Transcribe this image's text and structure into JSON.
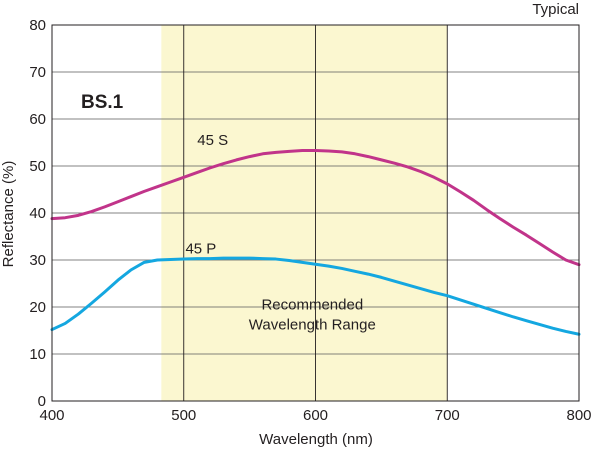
{
  "chart_data": {
    "type": "line",
    "title": "BS.1",
    "note": "Typical",
    "xlabel": "Wavelength (nm)",
    "ylabel": "Reflectance (%)",
    "xlim": [
      400,
      800
    ],
    "ylim": [
      0,
      80
    ],
    "xticks": [
      400,
      500,
      600,
      700,
      800
    ],
    "yticks": [
      0,
      10,
      20,
      30,
      40,
      50,
      60,
      70,
      80
    ],
    "grid": true,
    "band": {
      "label_lines": [
        "Recommended",
        "Wavelength Range"
      ],
      "x_range": [
        483,
        700
      ],
      "color": "#fbf7d0"
    },
    "series": [
      {
        "name": "45 S",
        "color": "#c1348a",
        "label_at": [
          522,
          55.5
        ],
        "x": [
          400,
          410,
          420,
          430,
          440,
          450,
          460,
          470,
          480,
          490,
          500,
          510,
          520,
          530,
          540,
          550,
          560,
          570,
          580,
          590,
          600,
          610,
          620,
          630,
          640,
          650,
          660,
          670,
          680,
          690,
          700,
          710,
          720,
          730,
          740,
          750,
          760,
          770,
          780,
          790,
          800
        ],
        "values": [
          38.8,
          39.0,
          39.5,
          40.3,
          41.3,
          42.4,
          43.5,
          44.6,
          45.6,
          46.6,
          47.6,
          48.6,
          49.6,
          50.5,
          51.3,
          52.0,
          52.6,
          52.9,
          53.1,
          53.3,
          53.3,
          53.2,
          53.0,
          52.6,
          52.0,
          51.3,
          50.6,
          49.8,
          48.8,
          47.6,
          46.2,
          44.5,
          42.7,
          40.7,
          38.8,
          37.0,
          35.3,
          33.5,
          31.7,
          30.0,
          29.0
        ]
      },
      {
        "name": "45 P",
        "color": "#14a7e0",
        "label_at": [
          513,
          32.5
        ],
        "x": [
          400,
          410,
          420,
          430,
          440,
          450,
          460,
          470,
          480,
          490,
          500,
          510,
          520,
          530,
          540,
          550,
          560,
          570,
          580,
          590,
          600,
          610,
          620,
          630,
          640,
          650,
          660,
          670,
          680,
          690,
          700,
          710,
          720,
          730,
          740,
          750,
          760,
          770,
          780,
          790,
          800
        ],
        "values": [
          15.2,
          16.5,
          18.5,
          20.8,
          23.2,
          25.7,
          27.9,
          29.5,
          30.0,
          30.1,
          30.2,
          30.3,
          30.3,
          30.4,
          30.4,
          30.4,
          30.3,
          30.2,
          29.9,
          29.5,
          29.1,
          28.7,
          28.2,
          27.6,
          27.0,
          26.3,
          25.5,
          24.7,
          23.9,
          23.1,
          22.4,
          21.5,
          20.6,
          19.7,
          18.8,
          17.9,
          17.1,
          16.3,
          15.5,
          14.8,
          14.2
        ]
      }
    ]
  }
}
